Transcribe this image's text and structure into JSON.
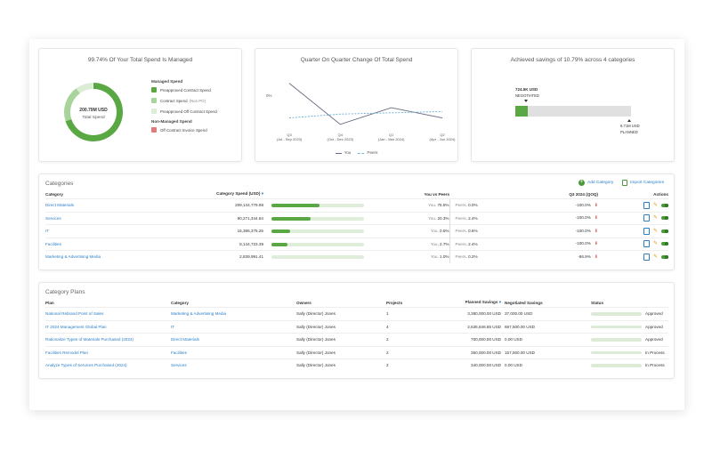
{
  "summary": {
    "managed": {
      "title": "99.74% Of Your Total Spend Is Managed",
      "donut_value": "200.79M USD",
      "donut_label": "Total Spend",
      "managed_heading": "Managed Spend",
      "managed_items": [
        {
          "label": "Preapproved Contract Spend",
          "note": "",
          "color": "#5aa844"
        },
        {
          "label": "Contract Spend",
          "note": "(Non PO)",
          "color": "#a8d39a"
        },
        {
          "label": "Preapproved Off Contract Spend",
          "note": "",
          "color": "#dcecd5"
        }
      ],
      "non_managed_heading": "Non-Managed Spend",
      "non_managed_items": [
        {
          "label": "Off Contract Invoice Spend",
          "color": "#e07b7b"
        }
      ],
      "share_fractions": [
        0.7,
        0.2,
        0.0974
      ]
    },
    "quarter": {
      "title": "Quarter On Quarter Change Of Total Spend",
      "y_tick": "0%",
      "x_ticks": [
        {
          "q": "Q3",
          "range": "(Jul - Sep 2023)"
        },
        {
          "q": "Q4",
          "range": "(Oct - Dec 2023)"
        },
        {
          "q": "Q1",
          "range": "(Jan - Mar 2024)"
        },
        {
          "q": "Q2",
          "range": "(Apr - Jun 2024)"
        }
      ],
      "legend_you": "You",
      "legend_peers": "Peers"
    },
    "savings": {
      "title": "Achieved savings of 10.79% across 4 categories",
      "negotiated_value": "724.5K USD",
      "negotiated_label": "NEGOTIATED",
      "planned_value": "6.71M USD",
      "planned_label": "PLANNED",
      "achieved_fraction": 0.1079
    }
  },
  "chart_data": {
    "type": "line",
    "title": "Quarter On Quarter Change Of Total Spend",
    "categories": [
      "Q3 (Jul - Sep 2023)",
      "Q4 (Oct - Dec 2023)",
      "Q1 (Jan - Mar 2024)",
      "Q2 (Apr - Jun 2024)"
    ],
    "series": [
      {
        "name": "You",
        "values": [
          22,
          -10,
          3,
          -5
        ],
        "color": "#666b80"
      },
      {
        "name": "Peers",
        "values": [
          -5,
          -2,
          -1,
          0
        ],
        "color": "#6aaed6"
      }
    ],
    "ylim": [
      -15,
      28
    ]
  },
  "categories": {
    "title": "Categories",
    "add_label": "Add Category",
    "import_label": "Import Categories",
    "headers": {
      "category": "Category",
      "spend": "Category Spend (USD)",
      "peers": "You vs Peers",
      "qoq": "Q3 2024 (QOQ)",
      "actions": "Actions"
    },
    "you_label": "You",
    "peers_label": "Peers",
    "rows": [
      {
        "name": "Direct Materials",
        "spend": "209,144,779.98",
        "fraction": 0.52,
        "you": "75.5%",
        "peers": "0.0%",
        "qoq": "-100.0%"
      },
      {
        "name": "Services",
        "spend": "90,271,344.64",
        "fraction": 0.42,
        "you": "20.3%",
        "peers": "2.4%",
        "qoq": "-100.0%"
      },
      {
        "name": "IT",
        "spend": "16,386,375.25",
        "fraction": 0.2,
        "you": "0.5%",
        "peers": "0.6%",
        "qoq": "-100.0%"
      },
      {
        "name": "Facilities",
        "spend": "8,144,723.39",
        "fraction": 0.17,
        "you": "2.7%",
        "peers": "2.4%",
        "qoq": "-100.0%"
      },
      {
        "name": "Marketing & Advertising Media",
        "spend": "2,839,991.41",
        "fraction": 0.0,
        "you": "1.0%",
        "peers": "0.2%",
        "qoq": "-86.9%"
      }
    ]
  },
  "plans": {
    "title": "Category Plans",
    "headers": {
      "plan": "Plan",
      "category": "Category",
      "owners": "Owners",
      "projects": "Projects",
      "planned": "Planned Savings",
      "negotiated": "Negotiated Savings",
      "status": "Status"
    },
    "rows": [
      {
        "plan": "National Rebrand Point of Sales",
        "category": "Marketing & Advertising Media",
        "owner": "Sally (Director) Jones",
        "projects": "1",
        "planned": "3,380,000.00 USD",
        "negotiated": "37,000.00 USD",
        "status": "Approved"
      },
      {
        "plan": "IT 2024 Management Global Plan",
        "category": "IT",
        "owner": "Sally (Director) Jones",
        "projects": "4",
        "planned": "2,635,846.85 USD",
        "negotiated": "687,500.00 USD",
        "status": "Approved"
      },
      {
        "plan": "Rationalize Types of Materials Purchased (2024)",
        "category": "Direct Materials",
        "owner": "Sally (Director) Jones",
        "projects": "2",
        "planned": "700,000.00 USD",
        "negotiated": "0.00 USD",
        "status": "Approved"
      },
      {
        "plan": "Facilities Remodel Plan",
        "category": "Facilities",
        "owner": "Sally (Director) Jones",
        "projects": "2",
        "planned": "350,000.00 USD",
        "negotiated": "157,500.00 USD",
        "status": "In Process"
      },
      {
        "plan": "Analyze Types of Services Purchased (2024)",
        "category": "Services",
        "owner": "Sally (Director) Jones",
        "projects": "2",
        "planned": "340,000.00 USD",
        "negotiated": "0.00 USD",
        "status": "In Process"
      }
    ]
  }
}
